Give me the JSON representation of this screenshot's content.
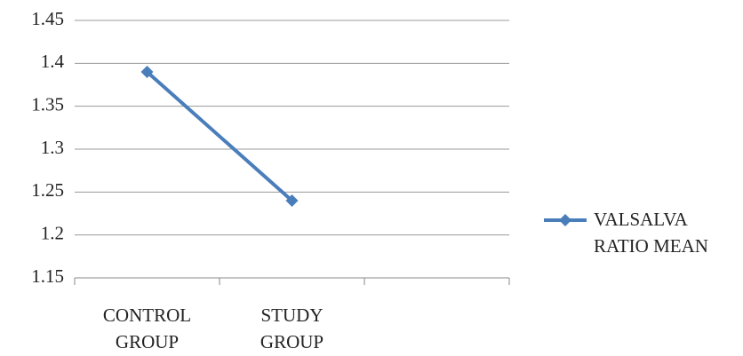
{
  "chart_data": {
    "type": "line",
    "categories": [
      "CONTROL GROUP",
      "STUDY GROUP",
      null
    ],
    "series": [
      {
        "name": "VALSALVA RATIO MEAN",
        "color": "#4a7ebb",
        "values": [
          1.39,
          1.24,
          null
        ]
      }
    ],
    "ylim": [
      1.15,
      1.45
    ],
    "yticks": [
      1.15,
      1.2,
      1.25,
      1.3,
      1.35,
      1.4,
      1.45
    ],
    "grid": true,
    "legend": "right"
  }
}
